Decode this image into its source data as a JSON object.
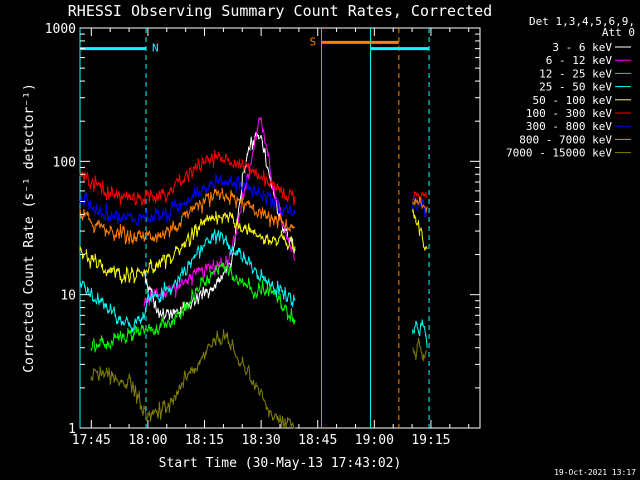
{
  "chart_data": {
    "type": "line",
    "title": "RHESSI Observing Summary Count Rates, Corrected",
    "xlabel": "Start Time (30-May-13 17:43:02)",
    "ylabel": "Corrected Count Rate (s⁻¹ detector⁻¹)",
    "yscale": "log",
    "ylim": [
      1,
      1000
    ],
    "yticks": [
      {
        "value": 1,
        "label": "1"
      },
      {
        "value": 10,
        "label": "10"
      },
      {
        "value": 100,
        "label": "100"
      },
      {
        "value": 1000,
        "label": "1000"
      }
    ],
    "xlim_min": [
      -3,
      103
    ],
    "xticks": [
      {
        "min": 0,
        "label": "17:45"
      },
      {
        "min": 15,
        "label": "18:00"
      },
      {
        "min": 30,
        "label": "18:15"
      },
      {
        "min": 45,
        "label": "18:30"
      },
      {
        "min": 60,
        "label": "18:45"
      },
      {
        "min": 75,
        "label": "19:00"
      },
      {
        "min": 90,
        "label": "19:15"
      }
    ],
    "legend_header": [
      "Det 1,3,4,5,6,9,",
      "Att 0"
    ],
    "legend_position": "top-right outside",
    "series": [
      {
        "name": "3 - 6 keV",
        "color": "#ffffff",
        "points": [
          [
            14,
            14
          ],
          [
            18,
            7
          ],
          [
            22,
            7
          ],
          [
            26,
            8.5
          ],
          [
            30,
            10.5
          ],
          [
            34,
            13
          ],
          [
            37,
            17
          ],
          [
            39,
            40
          ],
          [
            40,
            75
          ],
          [
            42,
            130
          ],
          [
            44,
            170
          ],
          [
            45,
            150
          ],
          [
            46,
            110
          ],
          [
            48,
            60
          ],
          [
            50,
            38
          ],
          [
            52,
            28
          ],
          [
            54,
            22
          ]
        ]
      },
      {
        "name": "6 - 12 keV",
        "color": "#ff00ff",
        "points": [
          [
            14,
            9
          ],
          [
            17,
            10
          ],
          [
            20,
            10.5
          ],
          [
            24,
            12
          ],
          [
            27,
            14
          ],
          [
            30,
            15
          ],
          [
            32,
            16
          ],
          [
            34,
            17
          ],
          [
            36,
            17
          ],
          [
            38,
            28
          ],
          [
            40,
            50
          ],
          [
            42,
            90
          ],
          [
            44,
            170
          ],
          [
            44.5,
            230
          ],
          [
            45,
            200
          ],
          [
            46,
            140
          ],
          [
            48,
            70
          ],
          [
            50,
            40
          ],
          [
            52,
            25
          ],
          [
            54,
            18
          ]
        ]
      },
      {
        "name": "12 - 25 keV",
        "color": "#00ff00",
        "points": [
          [
            0,
            4
          ],
          [
            10,
            5
          ],
          [
            15,
            5.5
          ],
          [
            18,
            5.5
          ],
          [
            21,
            6
          ],
          [
            25,
            8
          ],
          [
            29,
            11.5
          ],
          [
            33,
            14.5
          ],
          [
            35,
            16
          ],
          [
            37,
            15
          ],
          [
            39,
            13
          ],
          [
            41,
            12
          ],
          [
            43,
            11
          ],
          [
            46,
            11
          ],
          [
            49,
            10
          ],
          [
            51,
            8
          ],
          [
            53,
            7
          ],
          [
            54,
            6.5
          ]
        ]
      },
      {
        "name": "25 - 50 keV",
        "color": "#00ffff",
        "points": [
          [
            -3,
            12
          ],
          [
            0,
            10
          ],
          [
            4,
            8
          ],
          [
            8,
            6.5
          ],
          [
            11,
            6
          ],
          [
            14,
            6.5
          ],
          [
            15,
            9
          ],
          [
            18,
            10
          ],
          [
            22,
            12
          ],
          [
            26,
            17
          ],
          [
            30,
            24
          ],
          [
            33,
            28
          ],
          [
            35,
            27
          ],
          [
            38,
            22
          ],
          [
            41,
            18
          ],
          [
            44,
            14
          ],
          [
            47,
            12
          ],
          [
            51,
            10
          ],
          [
            54,
            9
          ],
          [
            54.2,
            null
          ],
          [
            85.2,
            5
          ],
          [
            86,
            6.5
          ],
          [
            87,
            5.5
          ],
          [
            88,
            6
          ],
          [
            89,
            4
          ]
        ]
      },
      {
        "name": "50 - 100 keV",
        "color": "#ffff00",
        "points": [
          [
            -3,
            22
          ],
          [
            0,
            18
          ],
          [
            4,
            15
          ],
          [
            8,
            14
          ],
          [
            12,
            14.5
          ],
          [
            16,
            16
          ],
          [
            20,
            18
          ],
          [
            24,
            23
          ],
          [
            28,
            30
          ],
          [
            32,
            37
          ],
          [
            35,
            38
          ],
          [
            38,
            35
          ],
          [
            41,
            31
          ],
          [
            44,
            27
          ],
          [
            48,
            26
          ],
          [
            51,
            25
          ],
          [
            54,
            23
          ],
          [
            54.2,
            null
          ],
          [
            85.2,
            42
          ],
          [
            86,
            38
          ],
          [
            87,
            30
          ],
          [
            88,
            25
          ],
          [
            89,
            22
          ]
        ]
      },
      {
        "name": "100 - 300 keV",
        "color": "#ff0000",
        "points": [
          [
            -3,
            85
          ],
          [
            0,
            70
          ],
          [
            4,
            58
          ],
          [
            8,
            54
          ],
          [
            12,
            53
          ],
          [
            16,
            54
          ],
          [
            20,
            58
          ],
          [
            24,
            70
          ],
          [
            28,
            92
          ],
          [
            32,
            106
          ],
          [
            34,
            109
          ],
          [
            38,
            100
          ],
          [
            41,
            90
          ],
          [
            44,
            80
          ],
          [
            48,
            67
          ],
          [
            51,
            58
          ],
          [
            54,
            55
          ],
          [
            54.2,
            null
          ],
          [
            85.2,
            53
          ],
          [
            86,
            55
          ],
          [
            87,
            54
          ],
          [
            88,
            56
          ],
          [
            89,
            53
          ]
        ]
      },
      {
        "name": "300 - 800 keV",
        "color": "#0000ff",
        "points": [
          [
            -3,
            55
          ],
          [
            0,
            46
          ],
          [
            4,
            41
          ],
          [
            8,
            38
          ],
          [
            12,
            37
          ],
          [
            16,
            38
          ],
          [
            20,
            40
          ],
          [
            24,
            48
          ],
          [
            28,
            60
          ],
          [
            32,
            68
          ],
          [
            34,
            72
          ],
          [
            38,
            70
          ],
          [
            41,
            65
          ],
          [
            44,
            60
          ],
          [
            48,
            50
          ],
          [
            51,
            44
          ],
          [
            54,
            41
          ],
          [
            54.2,
            null
          ],
          [
            85.2,
            45
          ],
          [
            86,
            48
          ],
          [
            87,
            46
          ],
          [
            88,
            44
          ],
          [
            89,
            42
          ]
        ]
      },
      {
        "name": "800 - 7000 keV",
        "color": "#ff8000",
        "points": [
          [
            -3,
            40
          ],
          [
            0,
            35
          ],
          [
            4,
            30
          ],
          [
            8,
            28
          ],
          [
            12,
            27
          ],
          [
            16,
            28
          ],
          [
            20,
            30
          ],
          [
            24,
            35
          ],
          [
            28,
            45
          ],
          [
            32,
            53
          ],
          [
            34,
            55
          ],
          [
            38,
            52
          ],
          [
            41,
            47
          ],
          [
            44,
            42
          ],
          [
            48,
            37
          ],
          [
            51,
            34
          ],
          [
            54,
            32
          ],
          [
            54.2,
            null
          ],
          [
            85.2,
            50
          ],
          [
            86,
            49
          ],
          [
            87,
            48
          ],
          [
            88,
            47
          ],
          [
            89,
            46
          ]
        ]
      },
      {
        "name": "7000 - 15000 keV",
        "color": "#808000",
        "points": [
          [
            0,
            2.6
          ],
          [
            4,
            2.4
          ],
          [
            8,
            2.3
          ],
          [
            11,
            2.1
          ],
          [
            13,
            1.5
          ],
          [
            15,
            1.2
          ],
          [
            20,
            1.4
          ],
          [
            24,
            2.2
          ],
          [
            27,
            2.6
          ],
          [
            29,
            3.2
          ],
          [
            31,
            4.2
          ],
          [
            33,
            4.6
          ],
          [
            35,
            4.6
          ],
          [
            37,
            4.2
          ],
          [
            39,
            3.4
          ],
          [
            41,
            2.8
          ],
          [
            43,
            2.2
          ],
          [
            45,
            1.8
          ],
          [
            47,
            1.4
          ],
          [
            49,
            1.2
          ],
          [
            51,
            1.1
          ],
          [
            54,
            1.0
          ],
          [
            54.2,
            null
          ],
          [
            85.2,
            4
          ],
          [
            86,
            3.5
          ],
          [
            87,
            4.5
          ],
          [
            88,
            3.2
          ],
          [
            89,
            3.8
          ]
        ]
      }
    ],
    "attenuator_segments": [
      {
        "color": "#00ffff",
        "start": -3,
        "end": 14.5,
        "value": 700,
        "label": "N"
      },
      {
        "color": "#ff8000",
        "start": 61,
        "end": 81.5,
        "value": 780,
        "label": "S"
      },
      {
        "color": "#00ffff",
        "start": 74,
        "end": 89.5,
        "value": 700,
        "label": ""
      }
    ],
    "vertical_markers": [
      {
        "min": -3,
        "color": "#00ffff",
        "style": "solid"
      },
      {
        "min": 14.5,
        "color": "#00ffff",
        "style": "dashed"
      },
      {
        "min": 61,
        "color": "#ff8000",
        "style": "solid"
      },
      {
        "min": 74,
        "color": "#00ffff",
        "style": "solid"
      },
      {
        "min": 81.5,
        "color": "#ff8000",
        "style": "dashed"
      },
      {
        "min": 89.5,
        "color": "#00ffff",
        "style": "dashed"
      }
    ],
    "footer_date": "19-Oct-2021 13:17"
  }
}
